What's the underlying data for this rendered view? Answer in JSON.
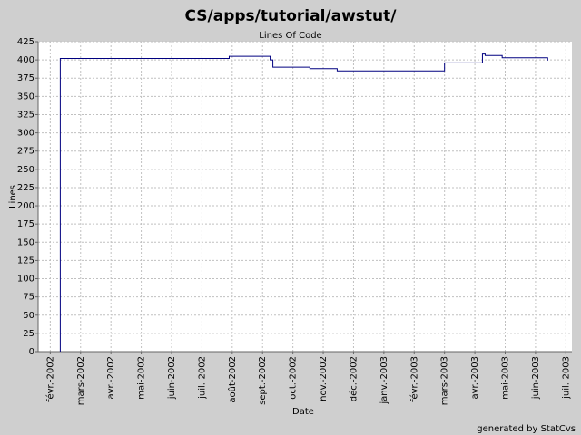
{
  "chart_data": {
    "type": "line",
    "title": "CS/apps/tutorial/awstut/",
    "subtitle": "Lines Of Code",
    "x_label": "Date",
    "y_label": "Lines",
    "footer": "generated by StatCvs",
    "x": [
      0.33,
      0.33,
      5.9,
      5.9,
      7.25,
      7.25,
      7.34,
      7.34,
      8.56,
      8.56,
      9.46,
      9.46,
      13.0,
      13.0,
      14.25,
      14.25,
      14.34,
      14.34,
      14.9,
      14.9,
      16.4,
      16.4
    ],
    "series": [
      {
        "name": "Lines Of Code",
        "color": "#000080",
        "values": [
          0,
          402,
          402,
          405,
          405,
          400,
          400,
          390,
          390,
          388,
          388,
          385,
          385,
          396,
          396,
          408,
          408,
          406,
          406,
          403,
          403,
          399
        ]
      }
    ],
    "xlim": [
      -0.4,
      17.2
    ],
    "xticks": [
      {
        "value": 0,
        "label": "févr.-2002"
      },
      {
        "value": 1,
        "label": "mars-2002"
      },
      {
        "value": 2,
        "label": "avr.-2002"
      },
      {
        "value": 3,
        "label": "mai-2002"
      },
      {
        "value": 4,
        "label": "juin-2002"
      },
      {
        "value": 5,
        "label": "juil.-2002"
      },
      {
        "value": 6,
        "label": "août-2002"
      },
      {
        "value": 7,
        "label": "sept.-2002"
      },
      {
        "value": 8,
        "label": "oct.-2002"
      },
      {
        "value": 9,
        "label": "nov.-2002"
      },
      {
        "value": 10,
        "label": "déc.-2002"
      },
      {
        "value": 11,
        "label": "janv.-2003"
      },
      {
        "value": 12,
        "label": "févr.-2003"
      },
      {
        "value": 13,
        "label": "mars-2003"
      },
      {
        "value": 14,
        "label": "avr.-2003"
      },
      {
        "value": 15,
        "label": "mai-2003"
      },
      {
        "value": 16,
        "label": "juin-2003"
      },
      {
        "value": 17,
        "label": "juil.-2003"
      }
    ],
    "ylim": [
      0,
      425
    ],
    "yticks": [
      0,
      25,
      50,
      75,
      100,
      125,
      150,
      175,
      200,
      225,
      250,
      275,
      300,
      325,
      350,
      375,
      400,
      425
    ],
    "grid": true
  }
}
